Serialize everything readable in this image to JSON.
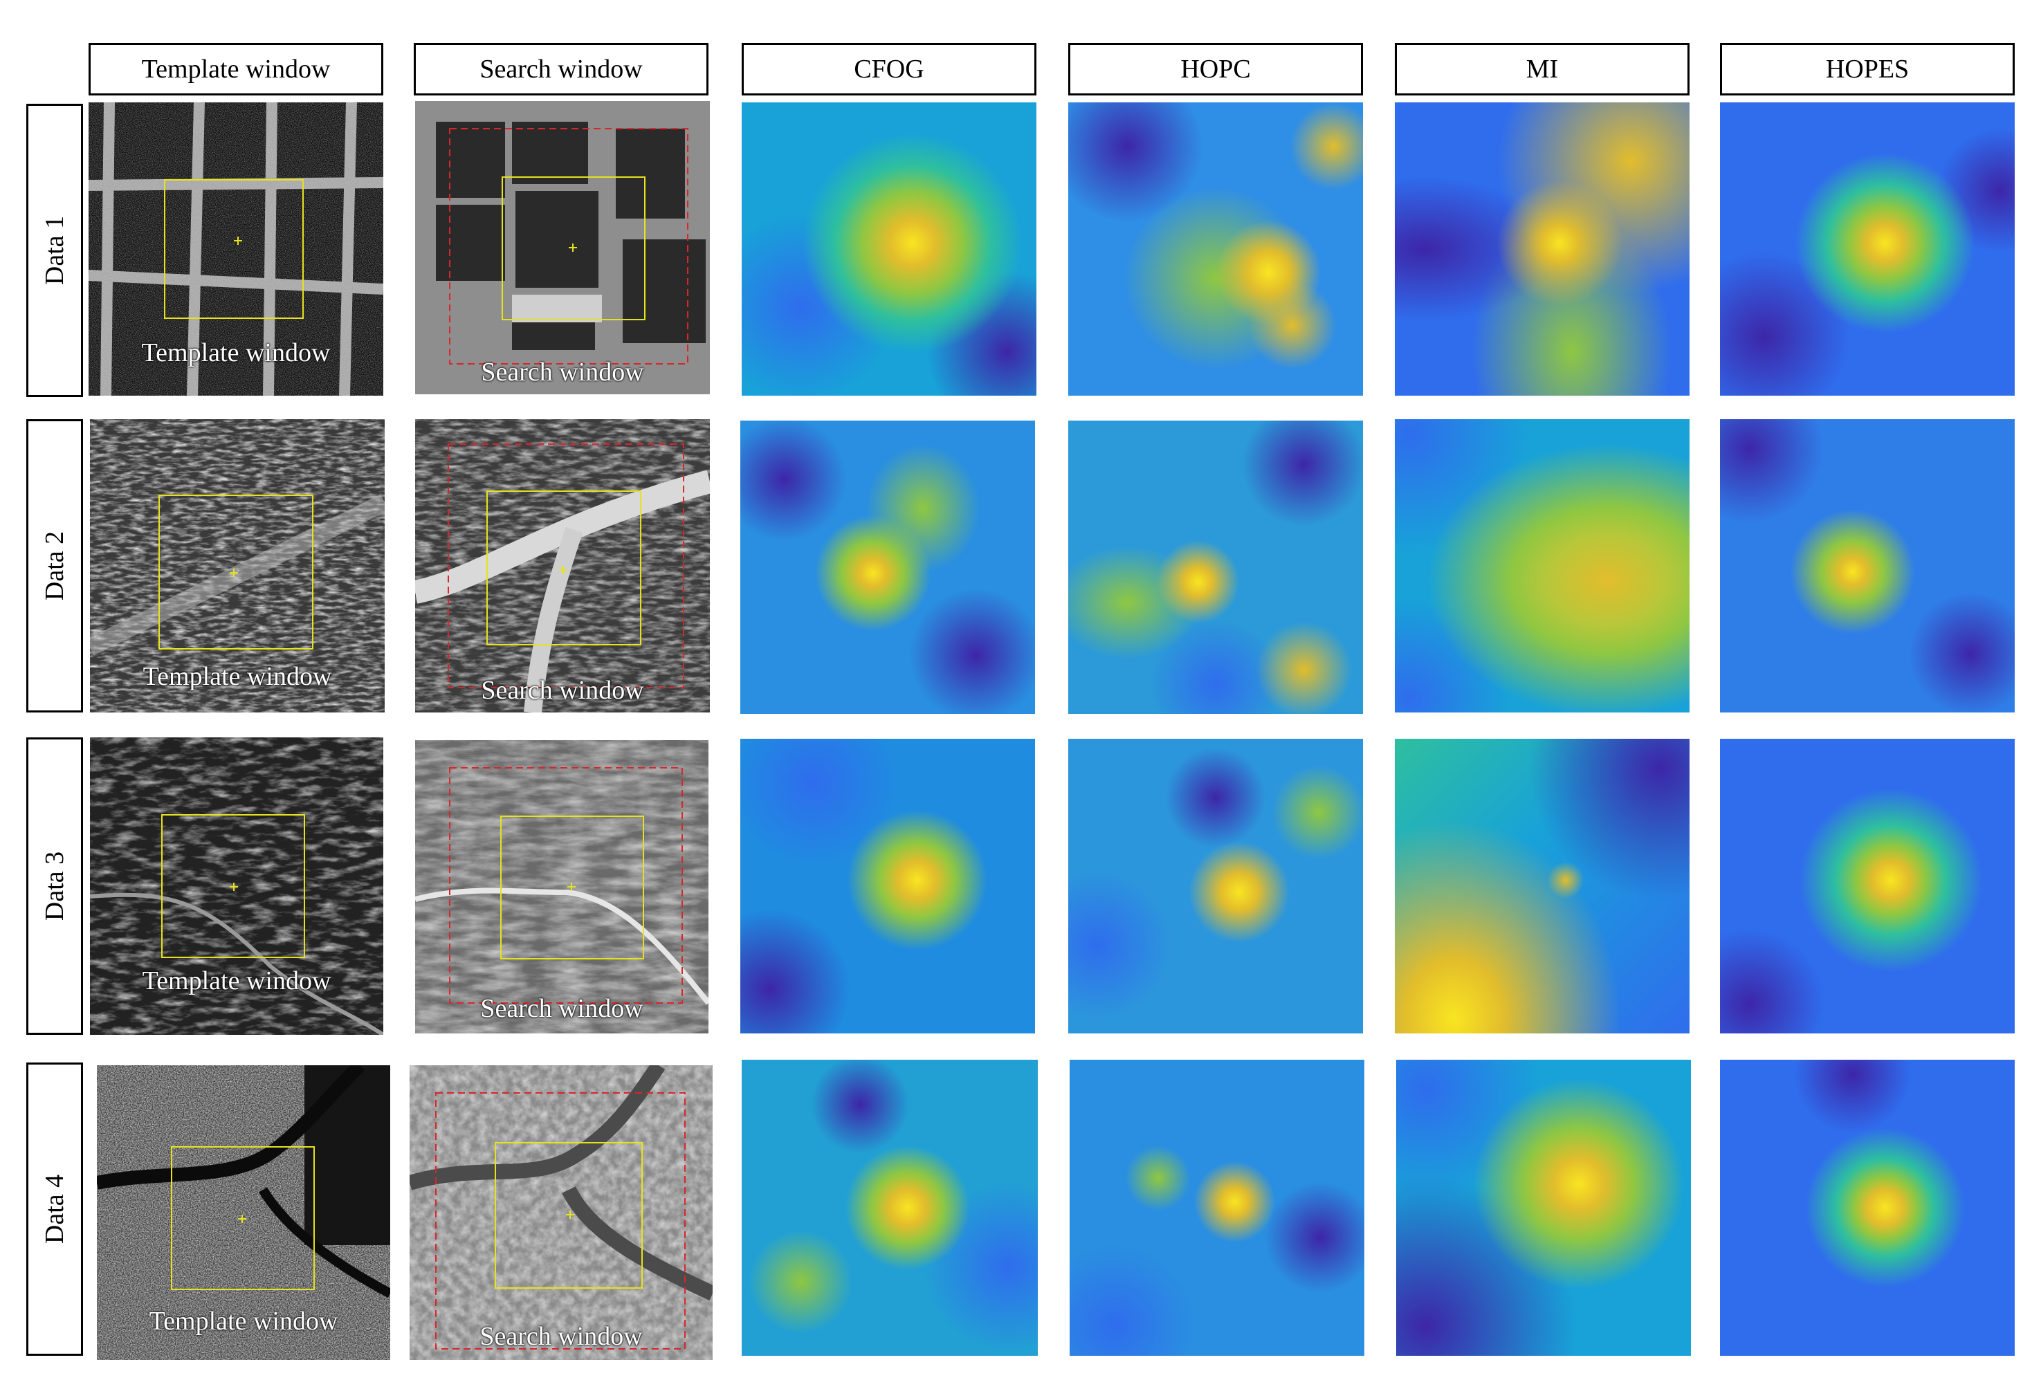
{
  "columns": [
    "Template window",
    "Search window",
    "CFOG",
    "HOPC",
    "MI",
    "HOPES"
  ],
  "rows": [
    {
      "label": "Data 1",
      "template_caption": "Template window",
      "search_caption": "Search window"
    },
    {
      "label": "Data 2",
      "template_caption": "Template window",
      "search_caption": "Search window"
    },
    {
      "label": "Data 3",
      "template_caption": "Template window",
      "search_caption": "Search window"
    },
    {
      "label": "Data 4",
      "template_caption": "Template window",
      "search_caption": "Search window"
    }
  ],
  "colors": {
    "template_box": "#e6e21c",
    "search_box": "#d8262a",
    "colormap": [
      "#3d26a8",
      "#2f6ded",
      "#18a2d8",
      "#2ebf9f",
      "#8fc742",
      "#e2bd2c",
      "#f9e521"
    ]
  }
}
